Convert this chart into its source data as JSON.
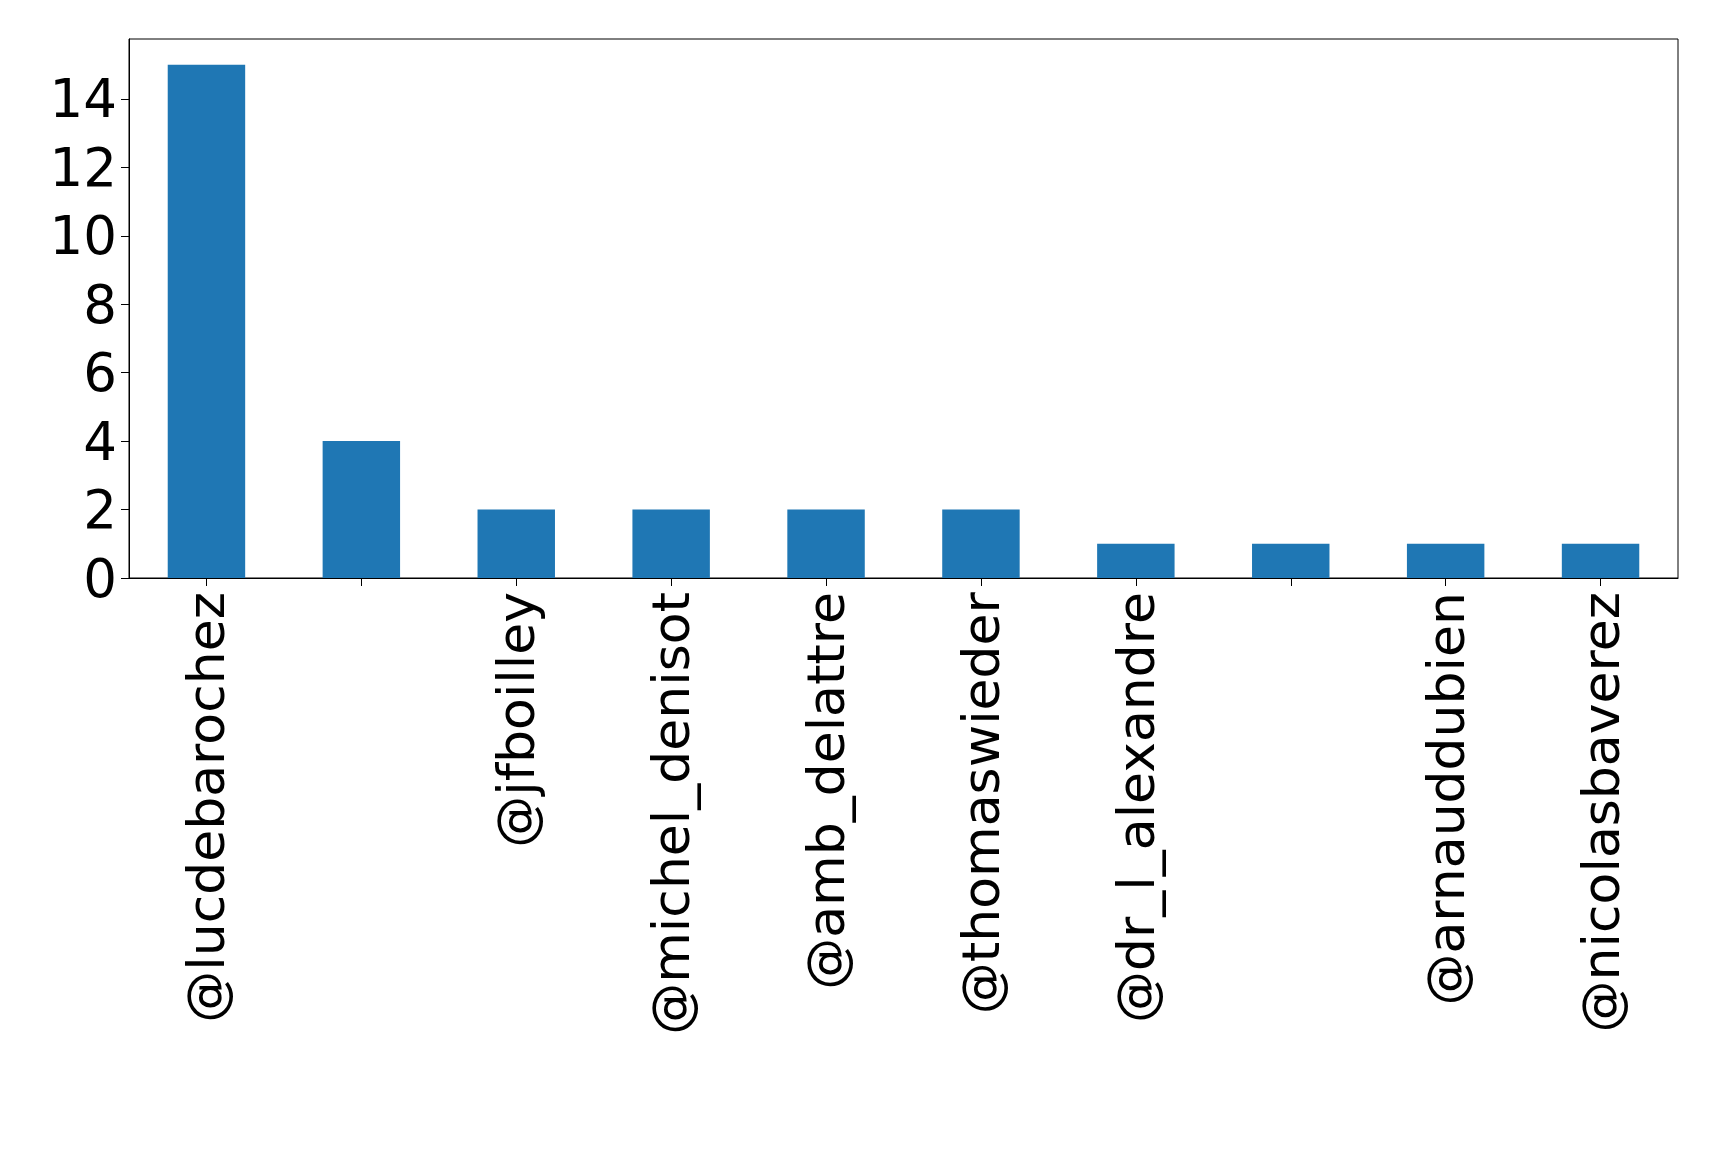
{
  "chart_data": {
    "type": "bar",
    "categories": [
      "@lucdebarochez",
      null,
      "@jfboilley",
      "@michel_denisot",
      "@amb_delattre",
      "@thomaswieder",
      "@dr_l_alexandre",
      null,
      "@arnauddubien",
      "@nicolasbaverez"
    ],
    "values": [
      15,
      4,
      2,
      2,
      2,
      2,
      1,
      1,
      1,
      1
    ],
    "color": "#1f77b4",
    "ylim": [
      0,
      15.75
    ],
    "yticks": [
      0,
      2,
      4,
      6,
      8,
      10,
      12,
      14
    ],
    "grid": false
  }
}
